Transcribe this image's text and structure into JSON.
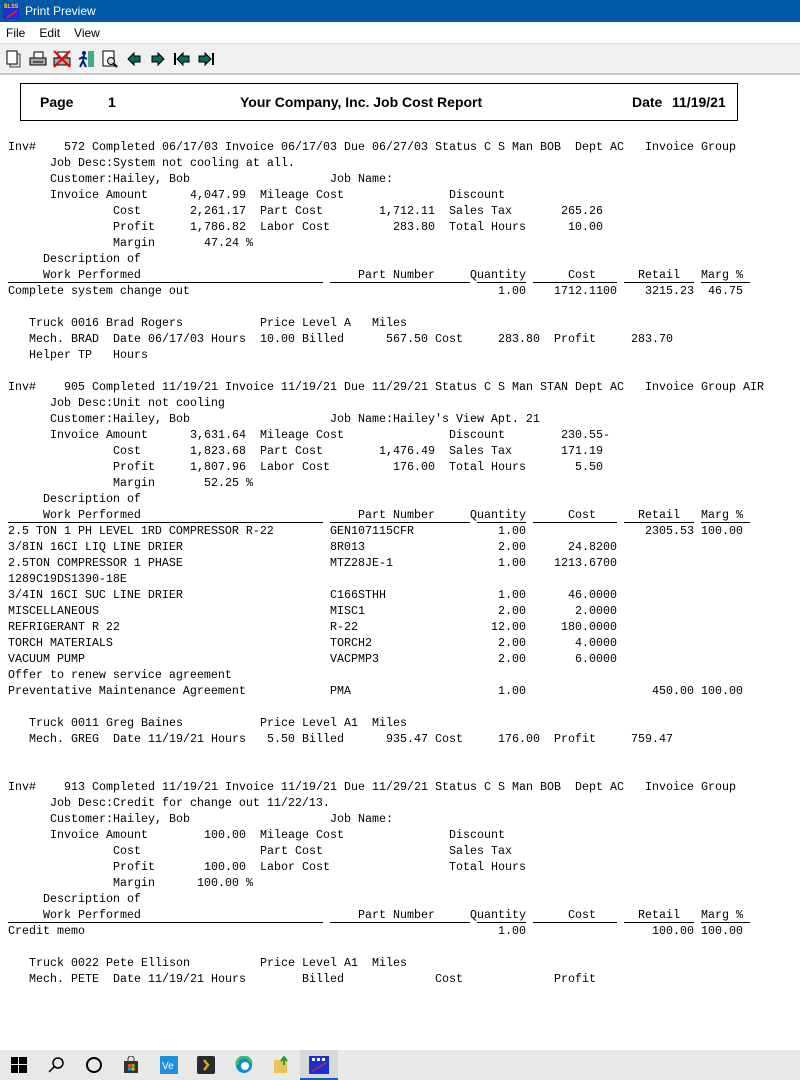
{
  "window": {
    "title": "Print Preview",
    "icon_text": "BLSS"
  },
  "menu": [
    "File",
    "Edit",
    "View"
  ],
  "toolbar": [
    "copy-page-icon",
    "print-icon",
    "cancel-print-icon",
    "exit-icon",
    "zoom-page-icon",
    "previous-page-icon",
    "next-page-icon",
    "first-page-icon",
    "last-page-icon"
  ],
  "header": {
    "page_label": "Page",
    "page_number": "1",
    "title": "Your Company, Inc. Job Cost Report",
    "date_label": "Date",
    "date": "11/19/21"
  },
  "labels": {
    "inv": "Inv#",
    "completed": "Completed",
    "invoice": "Invoice",
    "due": "Due",
    "status": "Status",
    "man": "Man",
    "dept": "Dept",
    "group": "Invoice Group",
    "job_desc": "Job Desc:",
    "customer": "Customer:",
    "job_name": "Job Name:",
    "invoice_amount": "Invoice Amount",
    "cost": "Cost",
    "profit": "Profit",
    "margin": "Margin",
    "pct": "%",
    "mileage_cost": "Mileage Cost",
    "part_cost": "Part Cost",
    "labor_cost": "Labor Cost",
    "discount": "Discount",
    "sales_tax": "Sales Tax",
    "total_hours": "Total Hours",
    "desc_of": "Description of",
    "work_performed": "Work Performed",
    "part_number": "Part Number",
    "quantity": "Quantity",
    "col_cost": "Cost",
    "retail": "Retail",
    "marg": "Marg %",
    "truck": "Truck",
    "price_level": "Price Level",
    "miles": "Miles",
    "mech": "Mech.",
    "date": "Date",
    "hours": "Hours",
    "billed": "Billed",
    "helper": "Helper"
  },
  "invoices": [
    {
      "number": "572",
      "completed": "06/17/03",
      "invoice_date": "06/17/03",
      "due": "06/27/03",
      "status": "C S",
      "man": "BOB",
      "dept": "AC",
      "group": "",
      "job_desc": "System not cooling at all.",
      "customer": "Hailey, Bob",
      "job_name": "",
      "invoice_amount": "4,047.99",
      "cost": "2,261.17",
      "profit": "1,786.82",
      "margin": "47.24",
      "mileage_cost": "",
      "part_cost": "1,712.11",
      "labor_cost": "283.80",
      "discount": "",
      "sales_tax": "265.26",
      "total_hours": "10.00",
      "items": [
        {
          "desc": "Complete system change out",
          "part": "",
          "qty": "1.00",
          "cost": "1712.1100",
          "retail": "3215.23",
          "marg": "46.75"
        }
      ],
      "truck_no": "0016",
      "truck_tech": "Brad Rogers",
      "price_level": "A",
      "miles": "",
      "mech": "BRAD",
      "mech_date": "06/17/03",
      "mech_hours": "10.00",
      "billed": "567.50",
      "mech_cost": "283.80",
      "mech_profit": "283.70",
      "helper": "TP",
      "helper_hours": ""
    },
    {
      "number": "905",
      "completed": "11/19/21",
      "invoice_date": "11/19/21",
      "due": "11/29/21",
      "status": "C S",
      "man": "STAN",
      "dept": "AC",
      "group": "AIR",
      "job_desc": "Unit not cooling",
      "customer": "Hailey, Bob",
      "job_name": "Hailey's View Apt. 21",
      "invoice_amount": "3,631.64",
      "cost": "1,823.68",
      "profit": "1,807.96",
      "margin": "52.25",
      "mileage_cost": "",
      "part_cost": "1,476.49",
      "labor_cost": "176.00",
      "discount": "230.55-",
      "sales_tax": "171.19",
      "total_hours": "5.50",
      "items": [
        {
          "desc": "2.5 TON 1 PH LEVEL 1RD COMPRESSOR R-22",
          "part": "GEN107115CFR",
          "qty": "1.00",
          "cost": "",
          "retail": "2305.53",
          "marg": "100.00"
        },
        {
          "desc": "3/8IN 16CI LIQ LINE DRIER",
          "part": "8R013",
          "qty": "2.00",
          "cost": "24.8200",
          "retail": "",
          "marg": ""
        },
        {
          "desc": "2.5TON COMPRESSOR 1 PHASE",
          "part": "MTZ28JE-1",
          "qty": "1.00",
          "cost": "1213.6700",
          "retail": "",
          "marg": ""
        },
        {
          "desc": "1289C19DS1390-18E",
          "part": "",
          "qty": "",
          "cost": "",
          "retail": "",
          "marg": ""
        },
        {
          "desc": "3/4IN 16CI SUC LINE DRIER",
          "part": "C166STHH",
          "qty": "1.00",
          "cost": "46.0000",
          "retail": "",
          "marg": ""
        },
        {
          "desc": "MISCELLANEOUS",
          "part": "MISC1",
          "qty": "2.00",
          "cost": "2.0000",
          "retail": "",
          "marg": ""
        },
        {
          "desc": "REFRIGERANT R 22",
          "part": "R-22",
          "qty": "12.00",
          "cost": "180.0000",
          "retail": "",
          "marg": ""
        },
        {
          "desc": "TORCH MATERIALS",
          "part": "TORCH2",
          "qty": "2.00",
          "cost": "4.0000",
          "retail": "",
          "marg": ""
        },
        {
          "desc": "VACUUM PUMP",
          "part": "VACPMP3",
          "qty": "2.00",
          "cost": "6.0000",
          "retail": "",
          "marg": ""
        },
        {
          "desc": "Offer to renew service agreement",
          "part": "",
          "qty": "",
          "cost": "",
          "retail": "",
          "marg": ""
        },
        {
          "desc": "Preventative Maintenance Agreement",
          "part": "PMA",
          "qty": "1.00",
          "cost": "",
          "retail": "450.00",
          "marg": "100.00"
        }
      ],
      "truck_no": "0011",
      "truck_tech": "Greg Baines",
      "price_level": "A1",
      "miles": "",
      "mech": "GREG",
      "mech_date": "11/19/21",
      "mech_hours": "5.50",
      "billed": "935.47",
      "mech_cost": "176.00",
      "mech_profit": "759.47"
    },
    {
      "number": "913",
      "completed": "11/19/21",
      "invoice_date": "11/19/21",
      "due": "11/29/21",
      "status": "C S",
      "man": "BOB",
      "dept": "AC",
      "group": "",
      "job_desc": "Credit for change out 11/22/13.",
      "customer": "Hailey, Bob",
      "job_name": "",
      "invoice_amount": "100.00",
      "cost": "",
      "profit": "100.00",
      "margin": "100.00",
      "mileage_cost": "",
      "part_cost": "",
      "labor_cost": "",
      "discount": "",
      "sales_tax": "",
      "total_hours": "",
      "items": [
        {
          "desc": "Credit memo",
          "part": "",
          "qty": "1.00",
          "cost": "",
          "retail": "100.00",
          "marg": "100.00"
        }
      ],
      "truck_no": "0022",
      "truck_tech": "Pete Ellison",
      "price_level": "A1",
      "miles": "",
      "mech": "PETE",
      "mech_date": "11/19/21",
      "mech_hours": "",
      "billed": "",
      "mech_cost": "",
      "mech_profit": ""
    }
  ],
  "taskbar": [
    "windows-start-icon",
    "search-icon",
    "cortana-icon",
    "store-icon",
    "ve-app-icon",
    "plex-icon",
    "edge-icon",
    "file-explorer-icon",
    "print-preview-app-icon"
  ]
}
